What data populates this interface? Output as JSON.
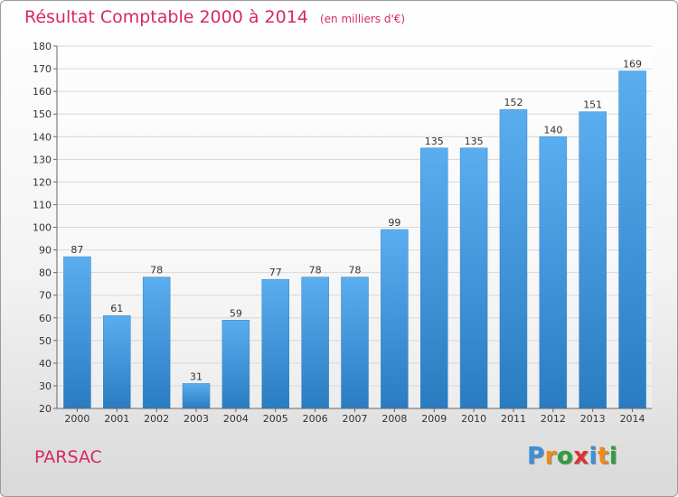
{
  "title": "Résultat Comptable 2000 à 2014",
  "subtitle": "(en milliers d'€)",
  "commune": "PARSAC",
  "brand": {
    "letters": [
      "P",
      "r",
      "o",
      "x",
      "i",
      "t",
      "i"
    ],
    "colors": [
      "#3d8fd6",
      "#f08a1a",
      "#2e9e3e",
      "#e03030",
      "#3d8fd6",
      "#f08a1a",
      "#2e9e3e"
    ]
  },
  "colors": {
    "accent": "#d62a5e",
    "bar_light": "#5aaef0",
    "bar_dark": "#2a7cc0",
    "grid": "#d8d8d8",
    "axis": "#666666"
  },
  "chart_data": {
    "type": "bar",
    "categories": [
      "2000",
      "2001",
      "2002",
      "2003",
      "2004",
      "2005",
      "2006",
      "2007",
      "2008",
      "2009",
      "2010",
      "2011",
      "2012",
      "2013",
      "2014"
    ],
    "values": [
      87,
      61,
      78,
      31,
      59,
      77,
      78,
      78,
      99,
      135,
      135,
      152,
      140,
      151,
      169
    ],
    "ylim": [
      20,
      180
    ],
    "yticks": [
      20,
      30,
      40,
      50,
      60,
      70,
      80,
      90,
      100,
      110,
      120,
      130,
      140,
      150,
      160,
      170,
      180
    ],
    "grid": true,
    "legend": "none"
  }
}
